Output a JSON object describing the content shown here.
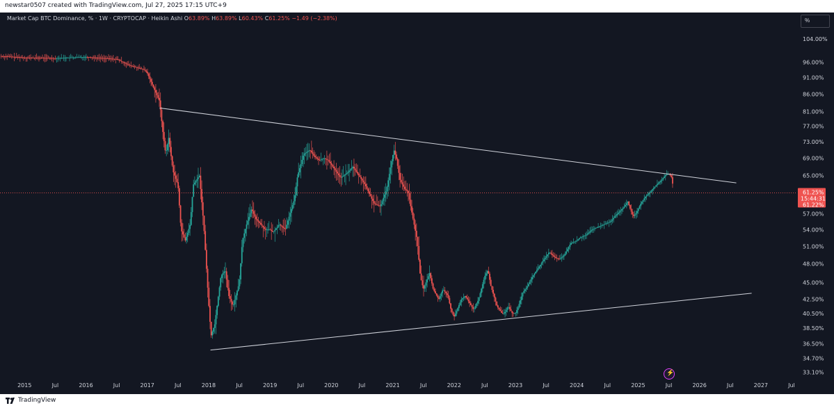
{
  "header": {
    "credit": "newstar0507 created with TradingView.com, Jul 27, 2025 17:15 UTC+9"
  },
  "legend": {
    "symbol": "Market Cap BTC Dominance, % · 1W · CRYPTOCAP · Heikin Ashi",
    "o_key": "O",
    "o_val": "63.89%",
    "h_key": "H",
    "h_val": "63.89%",
    "l_key": "L",
    "l_val": "60.43%",
    "c_key": "C",
    "c_val": "61.25%",
    "change": "−1.49 (−2.38%)"
  },
  "scale_button": "%",
  "footer": {
    "brand": "TradingView"
  },
  "colors": {
    "up": "#26a69a",
    "down": "#ef5350",
    "background": "#131722",
    "text": "#d1d4dc",
    "trendline": "#d1d4dc",
    "price_line": "#ef5350"
  },
  "chart_data": {
    "type": "candlestick",
    "style": "Heikin Ashi",
    "scale": "log",
    "ylim": [
      32.5,
      108
    ],
    "y_ticks": [
      "104.00%",
      "96.00%",
      "91.00%",
      "86.00%",
      "81.00%",
      "77.00%",
      "73.00%",
      "69.00%",
      "65.00%",
      "57.00%",
      "54.00%",
      "51.00%",
      "48.00%",
      "45.00%",
      "42.50%",
      "40.50%",
      "38.50%",
      "36.50%",
      "34.70%",
      "33.10%"
    ],
    "x_ticks": [
      "2015",
      "Jul",
      "2016",
      "Jul",
      "2017",
      "Jul",
      "2018",
      "Jul",
      "2019",
      "Jul",
      "2020",
      "Jul",
      "2021",
      "Jul",
      "2022",
      "Jul",
      "2023",
      "Jul",
      "2024",
      "Jul",
      "2025",
      "Jul",
      "2026",
      "Jul",
      "2027",
      "Jul"
    ],
    "x_tick_years": [
      2015.0,
      2015.5,
      2016.0,
      2016.5,
      2017.0,
      2017.5,
      2018.0,
      2018.5,
      2019.0,
      2019.5,
      2020.0,
      2020.5,
      2021.0,
      2021.5,
      2022.0,
      2022.5,
      2023.0,
      2023.5,
      2024.0,
      2024.5,
      2025.0,
      2025.5,
      2026.0,
      2026.5,
      2027.0,
      2027.5
    ],
    "xlim": [
      2014.6,
      2027.58
    ],
    "last_price": {
      "value": 61.25,
      "label": "61.25%",
      "countdown": "15:44:31",
      "second_label": "61.22%"
    },
    "trendlines": [
      {
        "name": "upper",
        "from": [
          2017.2,
          82.0
        ],
        "to": [
          2026.6,
          63.4
        ]
      },
      {
        "name": "lower",
        "from": [
          2018.03,
          35.7
        ],
        "to": [
          2026.85,
          43.4
        ]
      }
    ],
    "path": [
      [
        2014.6,
        98.0
      ],
      [
        2015.0,
        97.5
      ],
      [
        2015.5,
        97.3
      ],
      [
        2016.0,
        97.7
      ],
      [
        2016.5,
        97.0
      ],
      [
        2016.7,
        95.0
      ],
      [
        2016.95,
        93.5
      ],
      [
        2017.0,
        92.5
      ],
      [
        2017.1,
        88
      ],
      [
        2017.2,
        84
      ],
      [
        2017.25,
        76
      ],
      [
        2017.3,
        70
      ],
      [
        2017.35,
        74
      ],
      [
        2017.42,
        66
      ],
      [
        2017.5,
        63
      ],
      [
        2017.55,
        54
      ],
      [
        2017.62,
        52
      ],
      [
        2017.7,
        55
      ],
      [
        2017.75,
        63
      ],
      [
        2017.85,
        65
      ],
      [
        2017.92,
        55
      ],
      [
        2018.0,
        42
      ],
      [
        2018.04,
        37.5
      ],
      [
        2018.1,
        39
      ],
      [
        2018.2,
        46
      ],
      [
        2018.27,
        47
      ],
      [
        2018.33,
        43
      ],
      [
        2018.4,
        41.5
      ],
      [
        2018.5,
        45
      ],
      [
        2018.55,
        52
      ],
      [
        2018.62,
        55
      ],
      [
        2018.7,
        58
      ],
      [
        2018.77,
        56
      ],
      [
        2018.85,
        55
      ],
      [
        2018.92,
        54
      ],
      [
        2019.0,
        54
      ],
      [
        2019.05,
        53.5
      ],
      [
        2019.15,
        55
      ],
      [
        2019.2,
        54.5
      ],
      [
        2019.25,
        54
      ],
      [
        2019.3,
        56
      ],
      [
        2019.4,
        60
      ],
      [
        2019.45,
        65
      ],
      [
        2019.55,
        70
      ],
      [
        2019.65,
        71
      ],
      [
        2019.72,
        69.5
      ],
      [
        2019.8,
        68.5
      ],
      [
        2019.88,
        69
      ],
      [
        2019.95,
        68.5
      ],
      [
        2020.05,
        66.5
      ],
      [
        2020.15,
        64.5
      ],
      [
        2020.25,
        65.5
      ],
      [
        2020.35,
        67
      ],
      [
        2020.45,
        65
      ],
      [
        2020.55,
        63
      ],
      [
        2020.62,
        61
      ],
      [
        2020.7,
        59
      ],
      [
        2020.8,
        58.5
      ],
      [
        2020.9,
        62
      ],
      [
        2020.98,
        68
      ],
      [
        2021.02,
        71
      ],
      [
        2021.06,
        69
      ],
      [
        2021.12,
        64
      ],
      [
        2021.2,
        62
      ],
      [
        2021.25,
        61.5
      ],
      [
        2021.3,
        58
      ],
      [
        2021.4,
        52
      ],
      [
        2021.45,
        46
      ],
      [
        2021.5,
        44
      ],
      [
        2021.6,
        46.5
      ],
      [
        2021.66,
        44
      ],
      [
        2021.75,
        42.5
      ],
      [
        2021.82,
        44
      ],
      [
        2021.9,
        43
      ],
      [
        2021.95,
        41
      ],
      [
        2022.0,
        40
      ],
      [
        2022.05,
        41
      ],
      [
        2022.12,
        42.5
      ],
      [
        2022.18,
        43
      ],
      [
        2022.25,
        42
      ],
      [
        2022.32,
        41
      ],
      [
        2022.4,
        42.5
      ],
      [
        2022.5,
        46
      ],
      [
        2022.55,
        47
      ],
      [
        2022.6,
        44.5
      ],
      [
        2022.7,
        41.5
      ],
      [
        2022.78,
        40.5
      ],
      [
        2022.82,
        40.5
      ],
      [
        2022.88,
        41.5
      ],
      [
        2022.95,
        40.5
      ],
      [
        2023.0,
        40.5
      ],
      [
        2023.05,
        41.5
      ],
      [
        2023.12,
        43.5
      ],
      [
        2023.2,
        44.5
      ],
      [
        2023.28,
        46
      ],
      [
        2023.35,
        47
      ],
      [
        2023.45,
        48.5
      ],
      [
        2023.55,
        50
      ],
      [
        2023.65,
        49
      ],
      [
        2023.72,
        48.8
      ],
      [
        2023.8,
        49.5
      ],
      [
        2023.9,
        51.5
      ],
      [
        2024.0,
        52
      ],
      [
        2024.05,
        52.5
      ],
      [
        2024.15,
        53
      ],
      [
        2024.25,
        54
      ],
      [
        2024.35,
        54.5
      ],
      [
        2024.45,
        55
      ],
      [
        2024.55,
        55.5
      ],
      [
        2024.62,
        56.5
      ],
      [
        2024.7,
        57.5
      ],
      [
        2024.78,
        58.5
      ],
      [
        2024.83,
        59.5
      ],
      [
        2024.87,
        58
      ],
      [
        2024.92,
        56.5
      ],
      [
        2024.97,
        57.2
      ],
      [
        2025.05,
        59.2
      ],
      [
        2025.12,
        60.5
      ],
      [
        2025.2,
        61.5
      ],
      [
        2025.3,
        63
      ],
      [
        2025.38,
        64
      ],
      [
        2025.45,
        65.2
      ],
      [
        2025.5,
        65.5
      ],
      [
        2025.55,
        64.5
      ],
      [
        2025.58,
        61.25
      ]
    ]
  }
}
